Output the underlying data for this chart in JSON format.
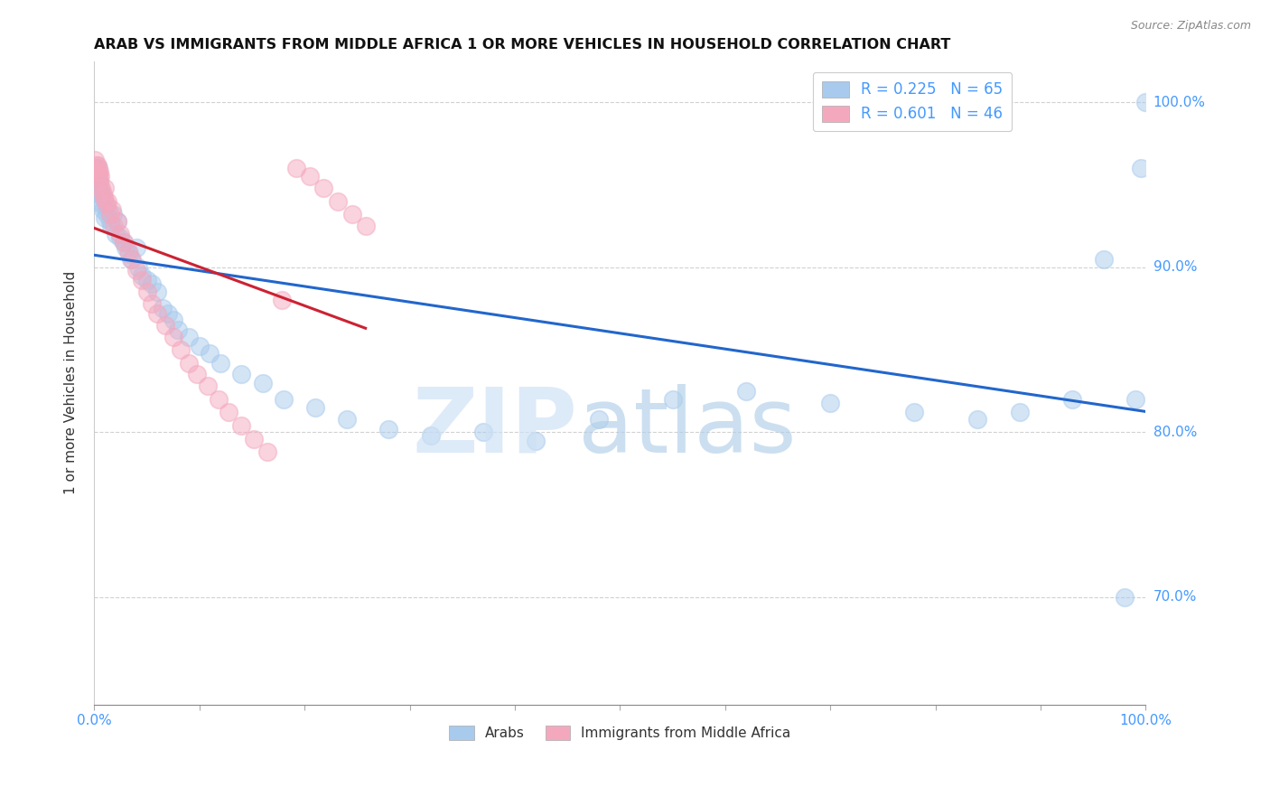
{
  "title": "ARAB VS IMMIGRANTS FROM MIDDLE AFRICA 1 OR MORE VEHICLES IN HOUSEHOLD CORRELATION CHART",
  "source": "Source: ZipAtlas.com",
  "ylabel": "1 or more Vehicles in Household",
  "xlim": [
    0.0,
    1.0
  ],
  "ylim": [
    0.635,
    1.025
  ],
  "yticks": [
    0.7,
    0.8,
    0.9,
    1.0
  ],
  "ytick_labels": [
    "70.0%",
    "80.0%",
    "90.0%",
    "100.0%"
  ],
  "xtick_labels": [
    "0.0%",
    "100.0%"
  ],
  "legend_blue_r": "R = 0.225",
  "legend_blue_n": "N = 65",
  "legend_pink_r": "R = 0.601",
  "legend_pink_n": "N = 46",
  "blue_color": "#a8caed",
  "pink_color": "#f4a8be",
  "line_blue": "#2266cc",
  "line_pink": "#cc2233",
  "axis_color": "#4499ff",
  "blue_x": [
    0.001,
    0.002,
    0.002,
    0.003,
    0.003,
    0.004,
    0.004,
    0.005,
    0.005,
    0.006,
    0.006,
    0.007,
    0.007,
    0.008,
    0.009,
    0.01,
    0.011,
    0.012,
    0.013,
    0.015,
    0.016,
    0.018,
    0.02,
    0.022,
    0.025,
    0.028,
    0.03,
    0.033,
    0.035,
    0.04,
    0.042,
    0.045,
    0.05,
    0.055,
    0.06,
    0.065,
    0.07,
    0.075,
    0.08,
    0.09,
    0.1,
    0.11,
    0.12,
    0.14,
    0.16,
    0.18,
    0.21,
    0.24,
    0.28,
    0.32,
    0.37,
    0.42,
    0.48,
    0.55,
    0.62,
    0.7,
    0.78,
    0.84,
    0.88,
    0.93,
    0.96,
    0.98,
    0.99,
    0.995,
    1.0
  ],
  "blue_y": [
    0.96,
    0.955,
    0.96,
    0.95,
    0.945,
    0.96,
    0.955,
    0.948,
    0.952,
    0.945,
    0.94,
    0.938,
    0.945,
    0.935,
    0.942,
    0.93,
    0.938,
    0.932,
    0.935,
    0.928,
    0.925,
    0.932,
    0.92,
    0.928,
    0.918,
    0.915,
    0.912,
    0.908,
    0.905,
    0.912,
    0.9,
    0.895,
    0.892,
    0.89,
    0.885,
    0.875,
    0.872,
    0.868,
    0.862,
    0.858,
    0.852,
    0.848,
    0.842,
    0.835,
    0.83,
    0.82,
    0.815,
    0.808,
    0.802,
    0.798,
    0.8,
    0.795,
    0.808,
    0.82,
    0.825,
    0.818,
    0.812,
    0.808,
    0.812,
    0.82,
    0.905,
    0.7,
    0.82,
    0.96,
    1.0
  ],
  "pink_x": [
    0.001,
    0.002,
    0.002,
    0.003,
    0.003,
    0.004,
    0.005,
    0.005,
    0.006,
    0.007,
    0.008,
    0.009,
    0.01,
    0.012,
    0.013,
    0.015,
    0.017,
    0.019,
    0.022,
    0.025,
    0.028,
    0.032,
    0.036,
    0.04,
    0.045,
    0.05,
    0.055,
    0.06,
    0.068,
    0.075,
    0.082,
    0.09,
    0.098,
    0.108,
    0.118,
    0.128,
    0.14,
    0.152,
    0.165,
    0.178,
    0.192,
    0.205,
    0.218,
    0.232,
    0.245,
    0.258
  ],
  "pink_y": [
    0.965,
    0.96,
    0.962,
    0.958,
    0.962,
    0.955,
    0.958,
    0.952,
    0.955,
    0.948,
    0.945,
    0.942,
    0.948,
    0.938,
    0.94,
    0.932,
    0.935,
    0.925,
    0.928,
    0.92,
    0.915,
    0.91,
    0.905,
    0.898,
    0.892,
    0.885,
    0.878,
    0.872,
    0.865,
    0.858,
    0.85,
    0.842,
    0.835,
    0.828,
    0.82,
    0.812,
    0.804,
    0.796,
    0.788,
    0.88,
    0.96,
    0.955,
    0.948,
    0.94,
    0.932,
    0.925
  ]
}
